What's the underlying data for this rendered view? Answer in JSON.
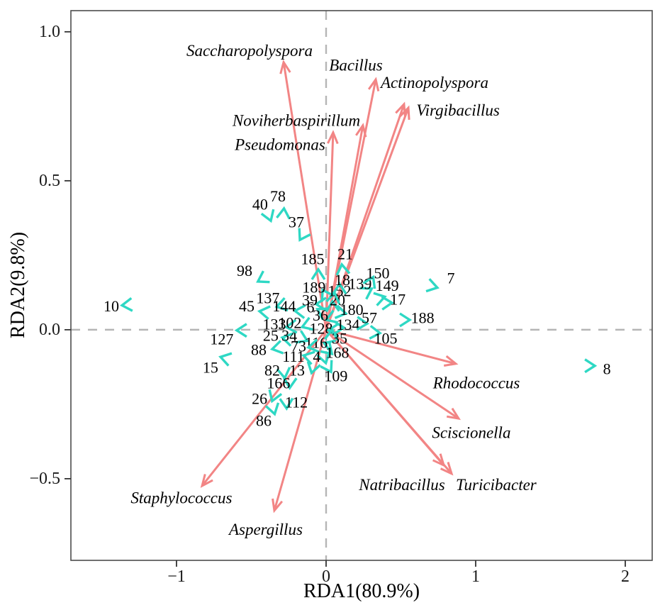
{
  "colors": {
    "species_arrow": "#f28585",
    "sample_marker": "#2ed8c4",
    "dashed_line": "#b5b5b5",
    "panel_border": "#4d4d4d",
    "text": "#000000"
  },
  "chart_data": {
    "type": "scatter",
    "subtype": "rda-biplot",
    "title": "",
    "xlabel": "RDA1(80.9%)",
    "ylabel": "RDA2(9.8%)",
    "xlim": [
      -1.706,
      2.18
    ],
    "ylim": [
      -0.774,
      1.071
    ],
    "xticks": [
      -1,
      0,
      1,
      2
    ],
    "xtick_labels": [
      "−1",
      "0",
      "1",
      "2"
    ],
    "yticks": [
      -0.5,
      0.0,
      0.5,
      1.0
    ],
    "ytick_labels": [
      "−0.5",
      "0.0",
      "0.5",
      "1.0"
    ],
    "grid": false,
    "zero_lines": "dashed",
    "legend": "none",
    "species_arrows": [
      {
        "name": "Saccharopolyspora",
        "tip": [
          -0.284,
          0.898
        ],
        "label": [
          -0.512,
          0.936
        ]
      },
      {
        "name": "Bacillus",
        "tip": [
          0.332,
          0.84
        ],
        "label": [
          0.199,
          0.888
        ]
      },
      {
        "name": "Actinopolyspora",
        "tip": [
          0.521,
          0.757
        ],
        "label": [
          0.725,
          0.829
        ]
      },
      {
        "name": "Virgibacillus",
        "tip": [
          0.55,
          0.745
        ],
        "label": [
          0.882,
          0.736
        ]
      },
      {
        "name": "Noviherbaspirillum",
        "tip": [
          0.246,
          0.686
        ],
        "label": [
          -0.199,
          0.702
        ]
      },
      {
        "name": "Pseudomonas",
        "tip": [
          0.047,
          0.662
        ],
        "label": [
          -0.308,
          0.621
        ]
      },
      {
        "name": "Rhodococcus",
        "tip": [
          0.867,
          -0.114
        ],
        "label": [
          1.005,
          -0.179
        ]
      },
      {
        "name": "Sciscionella",
        "tip": [
          0.886,
          -0.298
        ],
        "label": [
          0.971,
          -0.345
        ]
      },
      {
        "name": "Natribacillus",
        "tip": [
          0.787,
          -0.455
        ],
        "label": [
          0.507,
          -0.521
        ]
      },
      {
        "name": "Turicibacter",
        "tip": [
          0.839,
          -0.483
        ],
        "label": [
          1.137,
          -0.521
        ]
      },
      {
        "name": "Staphylococcus",
        "tip": [
          -0.829,
          -0.524
        ],
        "label": [
          -0.967,
          -0.564
        ]
      },
      {
        "name": "Aspergillus",
        "tip": [
          -0.346,
          -0.607
        ],
        "label": [
          -0.403,
          -0.671
        ]
      }
    ],
    "samples": [
      {
        "id": "10",
        "marker": [
          -1.336,
          0.083
        ],
        "label": [
          -1.436,
          0.079
        ],
        "rot": -5
      },
      {
        "id": "15",
        "marker": [
          -0.678,
          -0.095
        ],
        "label": [
          -0.773,
          -0.126
        ],
        "rot": 15
      },
      {
        "id": "127",
        "marker": [
          -0.569,
          -0.002
        ],
        "label": [
          -0.697,
          -0.031
        ],
        "rot": 0
      },
      {
        "id": "88",
        "marker": [
          -0.332,
          -0.062
        ],
        "label": [
          -0.45,
          -0.067
        ],
        "rot": -12
      },
      {
        "id": "25",
        "marker": [
          -0.265,
          -0.029
        ],
        "label": [
          -0.37,
          -0.019
        ],
        "rot": 12
      },
      {
        "id": "34",
        "marker": [
          -0.152,
          -0.031
        ],
        "label": [
          -0.246,
          -0.019
        ],
        "rot": 205
      },
      {
        "id": "133",
        "marker": [
          -0.237,
          0.01
        ],
        "label": [
          -0.346,
          0.019
        ],
        "rot": -5
      },
      {
        "id": "102",
        "marker": [
          -0.133,
          0.014
        ],
        "label": [
          -0.242,
          0.024
        ],
        "rot": -20
      },
      {
        "id": "45",
        "marker": [
          -0.417,
          0.06
        ],
        "label": [
          -0.531,
          0.079
        ],
        "rot": 8
      },
      {
        "id": "137",
        "marker": [
          -0.303,
          0.081
        ],
        "label": [
          -0.389,
          0.107
        ],
        "rot": -15
      },
      {
        "id": "144",
        "marker": [
          -0.18,
          0.062
        ],
        "label": [
          -0.28,
          0.079
        ],
        "rot": 5
      },
      {
        "id": "98",
        "marker": [
          -0.431,
          0.169
        ],
        "label": [
          -0.545,
          0.198
        ],
        "rot": -30
      },
      {
        "id": "40",
        "marker": [
          -0.379,
          0.379
        ],
        "label": [
          -0.441,
          0.421
        ],
        "rot": 250
      },
      {
        "id": "78",
        "marker": [
          -0.284,
          0.393
        ],
        "label": [
          -0.322,
          0.448
        ],
        "rot": 95
      },
      {
        "id": "37",
        "marker": [
          -0.161,
          0.314
        ],
        "label": [
          -0.199,
          0.362
        ],
        "rot": 300
      },
      {
        "id": "185",
        "marker": [
          -0.052,
          0.188
        ],
        "label": [
          -0.09,
          0.238
        ],
        "rot": 90
      },
      {
        "id": "21",
        "marker": [
          0.109,
          0.205
        ],
        "label": [
          0.128,
          0.255
        ],
        "rot": 82
      },
      {
        "id": "189",
        "marker": [
          -0.009,
          0.121
        ],
        "label": [
          -0.081,
          0.143
        ],
        "rot": 60
      },
      {
        "id": "39",
        "marker": [
          -0.038,
          0.086
        ],
        "label": [
          -0.109,
          0.1
        ],
        "rot": 0
      },
      {
        "id": "6",
        "marker": [
          -0.033,
          0.062
        ],
        "label": [
          -0.104,
          0.076
        ],
        "rot": 30
      },
      {
        "id": "36",
        "marker": [
          0.028,
          0.038
        ],
        "label": [
          -0.038,
          0.048
        ],
        "rot": -20
      },
      {
        "id": "128",
        "marker": [
          0.043,
          -0.002
        ],
        "label": [
          -0.033,
          0.005
        ],
        "rot": 0
      },
      {
        "id": "116",
        "marker": [
          0.014,
          -0.05
        ],
        "label": [
          -0.066,
          -0.043
        ],
        "rot": 20
      },
      {
        "id": "73",
        "marker": [
          -0.09,
          -0.057
        ],
        "label": [
          -0.185,
          -0.055
        ],
        "rot": -10
      },
      {
        "id": "111",
        "marker": [
          -0.123,
          -0.09
        ],
        "label": [
          -0.218,
          -0.09
        ],
        "rot": 15
      },
      {
        "id": "4",
        "marker": [
          -0.009,
          -0.098
        ],
        "label": [
          -0.062,
          -0.09
        ],
        "rot": 255
      },
      {
        "id": "13",
        "marker": [
          -0.09,
          -0.131
        ],
        "label": [
          -0.194,
          -0.136
        ],
        "rot": 285
      },
      {
        "id": "82",
        "marker": [
          -0.28,
          -0.148
        ],
        "label": [
          -0.36,
          -0.136
        ],
        "rot": 262
      },
      {
        "id": "166",
        "marker": [
          -0.242,
          -0.181
        ],
        "label": [
          -0.318,
          -0.179
        ],
        "rot": 272
      },
      {
        "id": "26",
        "marker": [
          -0.351,
          -0.226
        ],
        "label": [
          -0.445,
          -0.231
        ],
        "rot": 290
      },
      {
        "id": "112",
        "marker": [
          -0.265,
          -0.25
        ],
        "label": [
          -0.199,
          -0.243
        ],
        "rot": 268
      },
      {
        "id": "86",
        "marker": [
          -0.351,
          -0.269
        ],
        "label": [
          -0.417,
          -0.305
        ],
        "rot": 255
      },
      {
        "id": "109",
        "marker": [
          0.019,
          -0.129
        ],
        "label": [
          0.066,
          -0.155
        ],
        "rot": 240
      },
      {
        "id": "168",
        "marker": [
          0.019,
          -0.071
        ],
        "label": [
          0.076,
          -0.076
        ],
        "rot": 225
      },
      {
        "id": "35",
        "marker": [
          0.038,
          -0.014
        ],
        "label": [
          0.09,
          -0.029
        ],
        "rot": 95
      },
      {
        "id": "134",
        "marker": [
          0.09,
          0.007
        ],
        "label": [
          0.147,
          0.017
        ],
        "rot": 180
      },
      {
        "id": "180",
        "marker": [
          0.104,
          0.057
        ],
        "label": [
          0.171,
          0.067
        ],
        "rot": 190
      },
      {
        "id": "20",
        "marker": [
          0.043,
          0.081
        ],
        "label": [
          0.076,
          0.1
        ],
        "rot": 88
      },
      {
        "id": "152",
        "marker": [
          0.052,
          0.11
        ],
        "label": [
          0.09,
          0.131
        ],
        "rot": 100
      },
      {
        "id": "18",
        "marker": [
          0.09,
          0.14
        ],
        "label": [
          0.109,
          0.167
        ],
        "rot": 90
      },
      {
        "id": "139",
        "marker": [
          0.28,
          0.131
        ],
        "label": [
          0.227,
          0.155
        ],
        "rot": 150
      },
      {
        "id": "149",
        "marker": [
          0.365,
          0.107
        ],
        "label": [
          0.408,
          0.148
        ],
        "rot": 165
      },
      {
        "id": "17",
        "marker": [
          0.412,
          0.09
        ],
        "label": [
          0.479,
          0.102
        ],
        "rot": 178
      },
      {
        "id": "150",
        "marker": [
          0.303,
          0.164
        ],
        "label": [
          0.346,
          0.19
        ],
        "rot": 115
      },
      {
        "id": "57",
        "marker": [
          0.246,
          0.021
        ],
        "label": [
          0.289,
          0.04
        ],
        "rot": 182
      },
      {
        "id": "105",
        "marker": [
          0.332,
          -0.01
        ],
        "label": [
          0.398,
          -0.029
        ],
        "rot": 185
      },
      {
        "id": "188",
        "marker": [
          0.531,
          0.033
        ],
        "label": [
          0.645,
          0.04
        ],
        "rot": 180
      },
      {
        "id": "7",
        "marker": [
          0.716,
          0.145
        ],
        "label": [
          0.834,
          0.174
        ],
        "rot": 195
      },
      {
        "id": "8",
        "marker": [
          1.768,
          -0.121
        ],
        "label": [
          1.877,
          -0.131
        ],
        "rot": 180
      }
    ]
  }
}
